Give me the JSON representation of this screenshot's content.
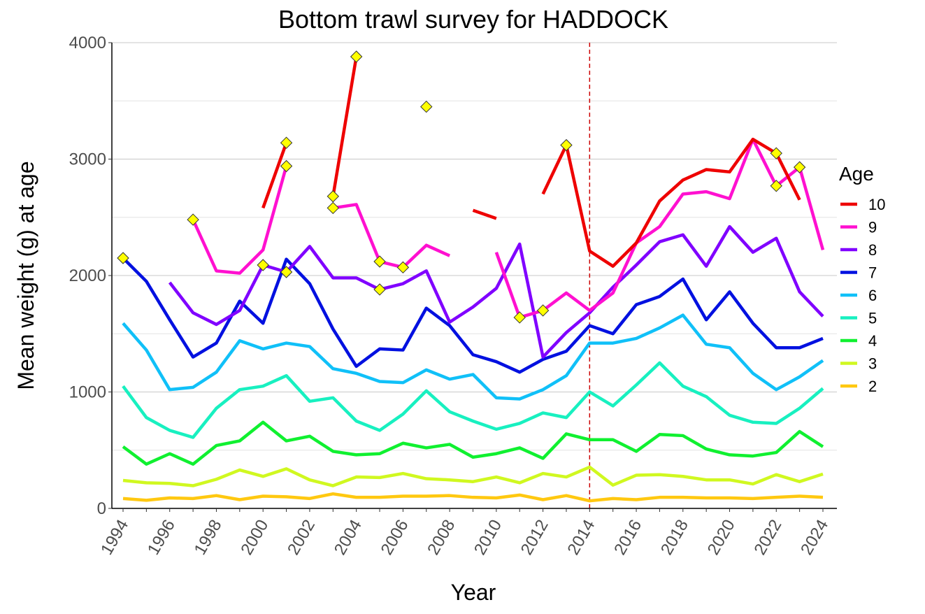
{
  "chart_data": {
    "type": "line",
    "title": "Bottom trawl survey for HADDOCK",
    "xlabel": "Year",
    "ylabel": "Mean weight (g) at age",
    "xlim": [
      1994,
      2024
    ],
    "ylim": [
      0,
      4000
    ],
    "y_ticks": [
      0,
      1000,
      2000,
      3000,
      4000
    ],
    "x_ticks": [
      1994,
      1996,
      1998,
      2000,
      2002,
      2004,
      2006,
      2008,
      2010,
      2012,
      2014,
      2016,
      2018,
      2020,
      2022,
      2024
    ],
    "grid": "horizontal",
    "legend_title": "Age",
    "legend_position": "right",
    "reference_line": {
      "year": 2014,
      "style": "dashed",
      "color": "#CC0000"
    },
    "x": [
      1994,
      1995,
      1996,
      1997,
      1998,
      1999,
      2000,
      2001,
      2002,
      2003,
      2004,
      2005,
      2006,
      2007,
      2008,
      2009,
      2010,
      2011,
      2012,
      2013,
      2014,
      2015,
      2016,
      2017,
      2018,
      2019,
      2020,
      2021,
      2022,
      2023,
      2024
    ],
    "series": [
      {
        "name": "10",
        "color": "#EE0000",
        "values": [
          null,
          null,
          null,
          null,
          null,
          null,
          2580,
          3140,
          null,
          2680,
          3880,
          null,
          null,
          3450,
          null,
          2560,
          2490,
          null,
          2700,
          3120,
          2210,
          2080,
          2280,
          2640,
          2820,
          2910,
          2890,
          3170,
          3050,
          2650,
          null
        ]
      },
      {
        "name": "9",
        "color": "#FF10D0",
        "values": [
          null,
          null,
          null,
          2480,
          2040,
          2020,
          2220,
          2940,
          null,
          2580,
          2610,
          2120,
          2070,
          2260,
          2170,
          null,
          2200,
          1640,
          1700,
          1850,
          1700,
          1850,
          2280,
          2420,
          2700,
          2720,
          2660,
          3170,
          2770,
          2930,
          2220
        ]
      },
      {
        "name": "8",
        "color": "#8000FF",
        "values": [
          null,
          null,
          1940,
          1680,
          1580,
          1700,
          2090,
          2030,
          2250,
          1980,
          1980,
          1880,
          1930,
          2040,
          1600,
          1730,
          1890,
          2270,
          1300,
          1510,
          1680,
          1900,
          2090,
          2290,
          2350,
          2080,
          2420,
          2200,
          2320,
          1860,
          1650
        ]
      },
      {
        "name": "7",
        "color": "#0010E0",
        "values": [
          2150,
          1950,
          1620,
          1300,
          1420,
          1780,
          1590,
          2140,
          1930,
          1540,
          1220,
          1370,
          1360,
          1720,
          1570,
          1320,
          1260,
          1170,
          1280,
          1350,
          1570,
          1500,
          1750,
          1820,
          1970,
          1620,
          1860,
          1590,
          1380,
          1380,
          1460
        ]
      },
      {
        "name": "6",
        "color": "#10C0F8",
        "values": [
          1590,
          1360,
          1020,
          1040,
          1170,
          1440,
          1370,
          1420,
          1390,
          1200,
          1160,
          1090,
          1080,
          1190,
          1110,
          1150,
          950,
          940,
          1020,
          1140,
          1420,
          1420,
          1460,
          1550,
          1660,
          1410,
          1380,
          1160,
          1020,
          1130,
          1270
        ]
      },
      {
        "name": "5",
        "color": "#18F0C0",
        "values": [
          1050,
          780,
          670,
          610,
          860,
          1020,
          1050,
          1140,
          920,
          950,
          750,
          670,
          810,
          1010,
          830,
          750,
          680,
          730,
          820,
          780,
          1000,
          880,
          1060,
          1250,
          1050,
          960,
          800,
          740,
          730,
          860,
          1030
        ]
      },
      {
        "name": "4",
        "color": "#10F030",
        "values": [
          530,
          380,
          470,
          380,
          540,
          580,
          740,
          580,
          620,
          490,
          460,
          470,
          560,
          520,
          550,
          440,
          470,
          520,
          430,
          640,
          590,
          590,
          490,
          635,
          625,
          510,
          460,
          450,
          480,
          660,
          530
        ]
      },
      {
        "name": "3",
        "color": "#D0F820",
        "values": [
          240,
          220,
          215,
          195,
          250,
          330,
          275,
          340,
          245,
          195,
          270,
          265,
          300,
          255,
          245,
          230,
          270,
          220,
          300,
          270,
          355,
          200,
          285,
          290,
          275,
          245,
          245,
          210,
          290,
          230,
          295
        ]
      },
      {
        "name": "2",
        "color": "#FFC810",
        "values": [
          85,
          70,
          90,
          85,
          110,
          75,
          105,
          100,
          85,
          125,
          95,
          95,
          105,
          105,
          110,
          95,
          90,
          115,
          75,
          110,
          65,
          85,
          75,
          95,
          95,
          90,
          90,
          85,
          95,
          105,
          95
        ]
      }
    ],
    "markers": {
      "shape": "diamond",
      "color": "#FFFF00",
      "points": [
        {
          "year": 1994,
          "age": "7",
          "value": 2150
        },
        {
          "year": 1997,
          "age": "9",
          "value": 2480
        },
        {
          "year": 2000,
          "age": "8",
          "value": 2090
        },
        {
          "year": 2001,
          "age": "10",
          "value": 3140
        },
        {
          "year": 2001,
          "age": "9",
          "value": 2940
        },
        {
          "year": 2001,
          "age": "8",
          "value": 2030
        },
        {
          "year": 2003,
          "age": "10",
          "value": 2680
        },
        {
          "year": 2003,
          "age": "9",
          "value": 2580
        },
        {
          "year": 2004,
          "age": "10",
          "value": 3880
        },
        {
          "year": 2005,
          "age": "9",
          "value": 2120
        },
        {
          "year": 2005,
          "age": "8",
          "value": 1880
        },
        {
          "year": 2006,
          "age": "9",
          "value": 2070
        },
        {
          "year": 2007,
          "age": "10",
          "value": 3450
        },
        {
          "year": 2011,
          "age": "9",
          "value": 1640
        },
        {
          "year": 2012,
          "age": "9",
          "value": 1700
        },
        {
          "year": 2013,
          "age": "10",
          "value": 3120
        },
        {
          "year": 2022,
          "age": "10",
          "value": 3050
        },
        {
          "year": 2022,
          "age": "9",
          "value": 2770
        },
        {
          "year": 2023,
          "age": "9",
          "value": 2930
        }
      ]
    }
  }
}
